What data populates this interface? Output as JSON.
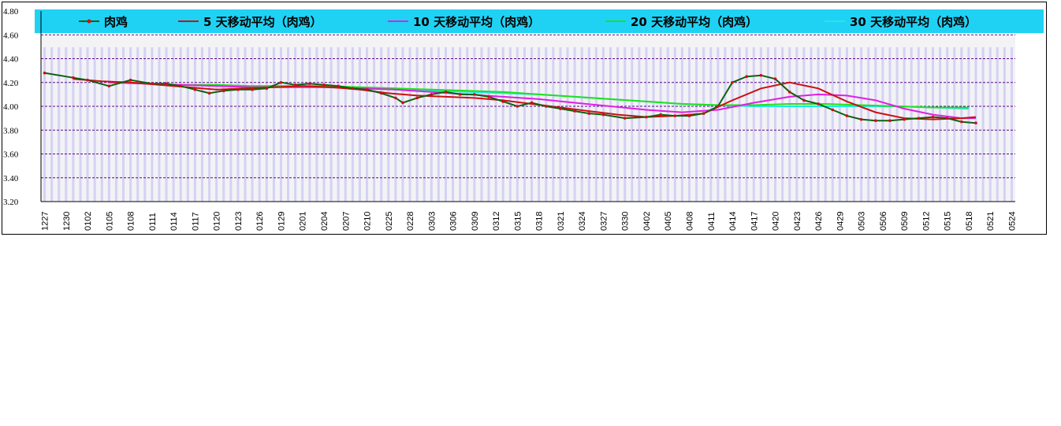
{
  "chart_data": {
    "type": "line",
    "title": "",
    "xlabel": "",
    "ylabel": "",
    "ylim": [
      3.2,
      4.8
    ],
    "yticks": [
      "3.20",
      "3.40",
      "3.60",
      "3.80",
      "4.00",
      "4.20",
      "4.40",
      "4.60",
      "4.80"
    ],
    "grid": true,
    "legend_position": "top",
    "colors": {
      "legend_band": "#1fd2f4",
      "plot_background": "#f3f2f5",
      "bar_fill": "#d4d2f4",
      "gridline": "#5b0a86"
    },
    "xtick_labels": [
      "1227",
      "1230",
      "0102",
      "0105",
      "0108",
      "0111",
      "0114",
      "0117",
      "0120",
      "0123",
      "0126",
      "0129",
      "0201",
      "0204",
      "0207",
      "0210",
      "0225",
      "0228",
      "0303",
      "0306",
      "0309",
      "0312",
      "0315",
      "0318",
      "0321",
      "0324",
      "0327",
      "0330",
      "0402",
      "0405",
      "0408",
      "0411",
      "0414",
      "0417",
      "0420",
      "0423",
      "0426",
      "0429",
      "0503",
      "0506",
      "0509",
      "0512",
      "0515",
      "0518",
      "0521",
      "0524"
    ],
    "x_count": 136,
    "series": [
      {
        "name": "肉鸡",
        "color": "#106010",
        "marker_color": "#cc1010",
        "marker": true,
        "anchors": [
          [
            0,
            4.28
          ],
          [
            4,
            4.24
          ],
          [
            6,
            4.22
          ],
          [
            9,
            4.17
          ],
          [
            12,
            4.22
          ],
          [
            15,
            4.19
          ],
          [
            17,
            4.19
          ],
          [
            19,
            4.17
          ],
          [
            21,
            4.14
          ],
          [
            23,
            4.11
          ],
          [
            25,
            4.13
          ],
          [
            27,
            4.14
          ],
          [
            29,
            4.14
          ],
          [
            31,
            4.15
          ],
          [
            33,
            4.2
          ],
          [
            35,
            4.18
          ],
          [
            37,
            4.19
          ],
          [
            39,
            4.18
          ],
          [
            41,
            4.17
          ],
          [
            43,
            4.15
          ],
          [
            45,
            4.14
          ],
          [
            47,
            4.11
          ],
          [
            49,
            4.07
          ],
          [
            50,
            4.03
          ],
          [
            52,
            4.07
          ],
          [
            54,
            4.1
          ],
          [
            56,
            4.12
          ],
          [
            58,
            4.1
          ],
          [
            60,
            4.1
          ],
          [
            62,
            4.08
          ],
          [
            64,
            4.04
          ],
          [
            66,
            4.0
          ],
          [
            68,
            4.03
          ],
          [
            70,
            4.0
          ],
          [
            72,
            3.98
          ],
          [
            74,
            3.96
          ],
          [
            76,
            3.94
          ],
          [
            78,
            3.93
          ],
          [
            81,
            3.9
          ],
          [
            84,
            3.91
          ],
          [
            86,
            3.93
          ],
          [
            88,
            3.92
          ],
          [
            90,
            3.92
          ],
          [
            92,
            3.94
          ],
          [
            94,
            4.0
          ],
          [
            96,
            4.2
          ],
          [
            98,
            4.25
          ],
          [
            100,
            4.26
          ],
          [
            102,
            4.23
          ],
          [
            104,
            4.12
          ],
          [
            106,
            4.05
          ],
          [
            108,
            4.02
          ],
          [
            110,
            3.97
          ],
          [
            112,
            3.92
          ],
          [
            114,
            3.89
          ],
          [
            116,
            3.88
          ],
          [
            118,
            3.88
          ],
          [
            120,
            3.89
          ],
          [
            122,
            3.9
          ],
          [
            124,
            3.91
          ],
          [
            126,
            3.9
          ],
          [
            128,
            3.87
          ],
          [
            130,
            3.86
          ]
        ]
      },
      {
        "name": "5 天移动平均（肉鸡）",
        "color": "#cc1010",
        "anchors": [
          [
            4,
            4.23
          ],
          [
            8,
            4.21
          ],
          [
            12,
            4.2
          ],
          [
            16,
            4.18
          ],
          [
            20,
            4.16
          ],
          [
            24,
            4.14
          ],
          [
            28,
            4.15
          ],
          [
            32,
            4.16
          ],
          [
            36,
            4.17
          ],
          [
            40,
            4.16
          ],
          [
            44,
            4.14
          ],
          [
            48,
            4.11
          ],
          [
            52,
            4.09
          ],
          [
            56,
            4.08
          ],
          [
            60,
            4.07
          ],
          [
            64,
            4.05
          ],
          [
            68,
            4.02
          ],
          [
            72,
            3.99
          ],
          [
            76,
            3.96
          ],
          [
            80,
            3.93
          ],
          [
            84,
            3.91
          ],
          [
            88,
            3.92
          ],
          [
            92,
            3.94
          ],
          [
            96,
            4.05
          ],
          [
            100,
            4.15
          ],
          [
            104,
            4.2
          ],
          [
            108,
            4.15
          ],
          [
            112,
            4.04
          ],
          [
            116,
            3.95
          ],
          [
            120,
            3.9
          ],
          [
            124,
            3.89
          ],
          [
            128,
            3.9
          ],
          [
            130,
            3.91
          ]
        ]
      },
      {
        "name": "10 天移动平均（肉鸡）",
        "color": "#e020e0",
        "anchors": [
          [
            9,
            4.2
          ],
          [
            14,
            4.19
          ],
          [
            19,
            4.18
          ],
          [
            24,
            4.17
          ],
          [
            29,
            4.16
          ],
          [
            34,
            4.16
          ],
          [
            39,
            4.16
          ],
          [
            44,
            4.15
          ],
          [
            49,
            4.14
          ],
          [
            54,
            4.12
          ],
          [
            59,
            4.1
          ],
          [
            64,
            4.08
          ],
          [
            69,
            4.06
          ],
          [
            74,
            4.03
          ],
          [
            79,
            4.0
          ],
          [
            84,
            3.97
          ],
          [
            89,
            3.95
          ],
          [
            94,
            3.97
          ],
          [
            99,
            4.03
          ],
          [
            104,
            4.08
          ],
          [
            108,
            4.1
          ],
          [
            112,
            4.09
          ],
          [
            116,
            4.05
          ],
          [
            120,
            3.98
          ],
          [
            124,
            3.93
          ],
          [
            128,
            3.9
          ],
          [
            130,
            3.9
          ]
        ]
      },
      {
        "name": "20 天移动平均（肉鸡）",
        "color": "#20e020",
        "anchors": [
          [
            19,
            4.18
          ],
          [
            24,
            4.18
          ],
          [
            29,
            4.17
          ],
          [
            34,
            4.17
          ],
          [
            39,
            4.17
          ],
          [
            44,
            4.16
          ],
          [
            49,
            4.15
          ],
          [
            54,
            4.14
          ],
          [
            59,
            4.13
          ],
          [
            64,
            4.12
          ],
          [
            69,
            4.1
          ],
          [
            74,
            4.08
          ],
          [
            79,
            4.06
          ],
          [
            84,
            4.04
          ],
          [
            89,
            4.02
          ],
          [
            94,
            4.01
          ],
          [
            99,
            4.01
          ],
          [
            104,
            4.02
          ],
          [
            109,
            4.02
          ],
          [
            114,
            4.01
          ],
          [
            119,
            4.0
          ],
          [
            124,
            3.99
          ],
          [
            129,
            3.99
          ]
        ]
      },
      {
        "name": "30 天移动平均（肉鸡）",
        "color": "#20e8e8",
        "anchors": [
          [
            29,
            4.17
          ],
          [
            34,
            4.17
          ],
          [
            39,
            4.16
          ],
          [
            44,
            4.15
          ],
          [
            49,
            4.14
          ],
          [
            54,
            4.13
          ],
          [
            59,
            4.12
          ],
          [
            64,
            4.11
          ],
          [
            69,
            4.1
          ],
          [
            74,
            4.08
          ],
          [
            79,
            4.06
          ],
          [
            84,
            4.04
          ],
          [
            89,
            4.02
          ],
          [
            94,
            4.01
          ],
          [
            99,
            4.0
          ],
          [
            104,
            4.0
          ],
          [
            109,
            4.0
          ],
          [
            114,
            4.0
          ],
          [
            119,
            4.0
          ],
          [
            124,
            3.99
          ],
          [
            129,
            3.98
          ]
        ]
      }
    ]
  }
}
